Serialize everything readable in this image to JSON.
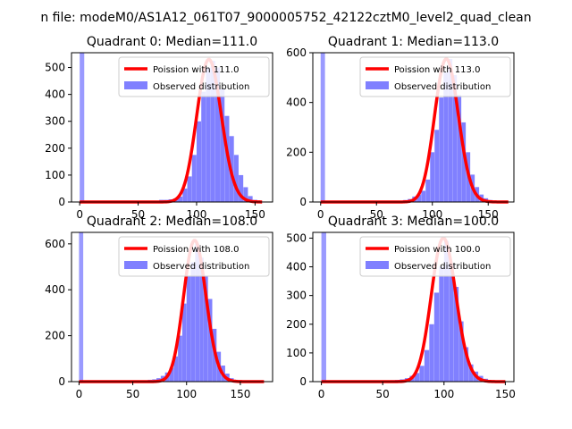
{
  "figure": {
    "suptitle": "n file: modeM0/AS1A12_061T07_9000005752_42122cztM0_level2_quad_clean"
  },
  "colors": {
    "hist": "#8080ff",
    "hist_spike": "#9a9aff",
    "poisson": "#ff0000"
  },
  "chart_data": [
    {
      "type": "bar",
      "title": "Quadrant 0: Median=111.0",
      "legend_placement": "upper-right",
      "legend": [
        "Poission with 111.0",
        "Observed distribution"
      ],
      "xlim": [
        -7,
        165
      ],
      "ylim": [
        0,
        555
      ],
      "xticks": [
        0,
        50,
        100,
        150
      ],
      "yticks": [
        0,
        100,
        200,
        300,
        400,
        500
      ],
      "bin_width": 3.9,
      "bins": [
        [
          0,
          555
        ],
        [
          60,
          2
        ],
        [
          64,
          4
        ],
        [
          68,
          8
        ],
        [
          72,
          8
        ],
        [
          76,
          10
        ],
        [
          80,
          13
        ],
        [
          84,
          20
        ],
        [
          88,
          50
        ],
        [
          92,
          95
        ],
        [
          96,
          175
        ],
        [
          100,
          300
        ],
        [
          104,
          410
        ],
        [
          108,
          500
        ],
        [
          112,
          525
        ],
        [
          116,
          500
        ],
        [
          120,
          420
        ],
        [
          124,
          320
        ],
        [
          128,
          245
        ],
        [
          132,
          175
        ],
        [
          136,
          100
        ],
        [
          140,
          55
        ],
        [
          144,
          22
        ],
        [
          148,
          8
        ],
        [
          152,
          5
        ]
      ],
      "poisson_mean": 111.0,
      "poisson_peak": 530,
      "poisson_x_range": [
        0,
        156
      ]
    },
    {
      "type": "bar",
      "title": "Quadrant 1: Median=113.0",
      "legend_placement": "upper-right",
      "legend": [
        "Poission with 113.0",
        "Observed distribution"
      ],
      "xlim": [
        -7,
        173
      ],
      "ylim": [
        0,
        600
      ],
      "xticks": [
        0,
        50,
        100,
        150
      ],
      "yticks": [
        0,
        200,
        400,
        600
      ],
      "bin_width": 3.9,
      "bins": [
        [
          0,
          600
        ],
        [
          62,
          2
        ],
        [
          66,
          3
        ],
        [
          70,
          5
        ],
        [
          74,
          8
        ],
        [
          78,
          12
        ],
        [
          82,
          22
        ],
        [
          86,
          30
        ],
        [
          90,
          45
        ],
        [
          94,
          90
        ],
        [
          98,
          200
        ],
        [
          102,
          290
        ],
        [
          106,
          420
        ],
        [
          110,
          520
        ],
        [
          114,
          575
        ],
        [
          118,
          510
        ],
        [
          122,
          430
        ],
        [
          126,
          320
        ],
        [
          130,
          200
        ],
        [
          134,
          110
        ],
        [
          138,
          60
        ],
        [
          142,
          30
        ],
        [
          146,
          15
        ],
        [
          150,
          8
        ],
        [
          154,
          5
        ],
        [
          158,
          3
        ]
      ],
      "poisson_mean": 113.0,
      "poisson_peak": 575,
      "poisson_x_range": [
        0,
        168
      ]
    },
    {
      "type": "bar",
      "title": "Quadrant 2: Median=108.0",
      "legend_placement": "upper-right",
      "legend": [
        "Poission with 108.0",
        "Observed distribution"
      ],
      "xlim": [
        -7,
        180
      ],
      "ylim": [
        0,
        650
      ],
      "xticks": [
        0,
        50,
        100,
        150
      ],
      "yticks": [
        0,
        200,
        400,
        600
      ],
      "bin_width": 3.9,
      "bins": [
        [
          0,
          650
        ],
        [
          56,
          3
        ],
        [
          60,
          5
        ],
        [
          64,
          8
        ],
        [
          68,
          10
        ],
        [
          72,
          15
        ],
        [
          76,
          25
        ],
        [
          80,
          40
        ],
        [
          84,
          60
        ],
        [
          88,
          110
        ],
        [
          92,
          200
        ],
        [
          96,
          340
        ],
        [
          100,
          460
        ],
        [
          104,
          520
        ],
        [
          108,
          600
        ],
        [
          112,
          540
        ],
        [
          116,
          460
        ],
        [
          120,
          360
        ],
        [
          124,
          230
        ],
        [
          128,
          130
        ],
        [
          132,
          70
        ],
        [
          136,
          35
        ],
        [
          140,
          15
        ],
        [
          144,
          8
        ],
        [
          148,
          5
        ],
        [
          152,
          3
        ],
        [
          156,
          2
        ],
        [
          160,
          2
        ],
        [
          164,
          2
        ],
        [
          168,
          1
        ]
      ],
      "poisson_mean": 108.0,
      "poisson_peak": 615,
      "poisson_x_range": [
        0,
        172
      ]
    },
    {
      "type": "bar",
      "title": "Quadrant 3: Median=100.0",
      "legend_placement": "upper-right",
      "legend": [
        "Poission with 100.0",
        "Observed distribution"
      ],
      "xlim": [
        -7,
        157
      ],
      "ylim": [
        0,
        520
      ],
      "xticks": [
        0,
        50,
        100,
        150
      ],
      "yticks": [
        0,
        100,
        200,
        300,
        400,
        500
      ],
      "bin_width": 3.9,
      "bins": [
        [
          0,
          520
        ],
        [
          48,
          2
        ],
        [
          52,
          3
        ],
        [
          56,
          5
        ],
        [
          60,
          6
        ],
        [
          64,
          8
        ],
        [
          68,
          12
        ],
        [
          72,
          20
        ],
        [
          76,
          30
        ],
        [
          80,
          55
        ],
        [
          84,
          110
        ],
        [
          88,
          200
        ],
        [
          92,
          310
        ],
        [
          96,
          400
        ],
        [
          100,
          490
        ],
        [
          104,
          410
        ],
        [
          108,
          330
        ],
        [
          112,
          210
        ],
        [
          116,
          120
        ],
        [
          120,
          60
        ],
        [
          124,
          35
        ],
        [
          128,
          20
        ],
        [
          132,
          10
        ],
        [
          136,
          5
        ],
        [
          140,
          3
        ]
      ],
      "poisson_mean": 100.0,
      "poisson_peak": 500,
      "poisson_x_range": [
        0,
        150
      ]
    }
  ]
}
